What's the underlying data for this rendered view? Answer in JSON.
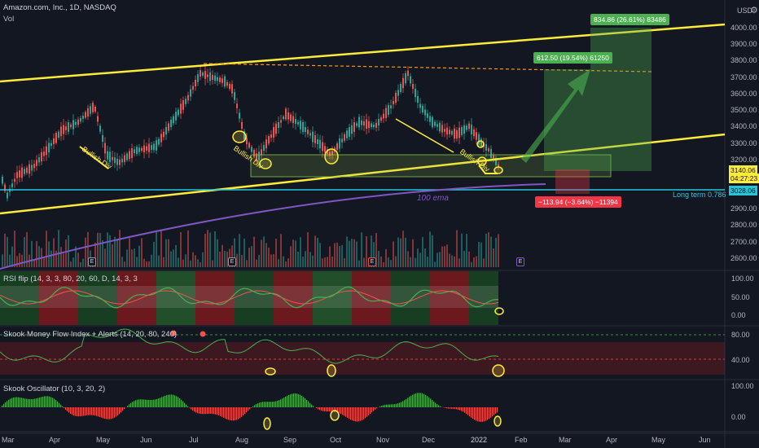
{
  "header": {
    "symbol_line": "Amazon.com, Inc., 1D, NASDAQ",
    "volume_label": "Vol",
    "currency": "USD",
    "currency_icon": "settings-gear-icon"
  },
  "price_axis": {
    "ticks": [
      "4000.00",
      "3900.00",
      "3800.00",
      "3700.00",
      "3600.00",
      "3500.00",
      "3400.00",
      "3300.00",
      "3200.00",
      "2900.00",
      "2800.00",
      "2700.00",
      "2600.00"
    ],
    "current_price": "3140.06",
    "countdown": "04:27:23",
    "level_price": "3028.06"
  },
  "time_axis": {
    "labels": [
      "Mar",
      "Apr",
      "May",
      "Jun",
      "Jul",
      "Aug",
      "Sep",
      "Oct",
      "Nov",
      "Dec",
      "2022",
      "Feb",
      "Mar",
      "Apr",
      "May",
      "Jun"
    ]
  },
  "annotations": {
    "measure_up_large": "834.86 (26.61%) 83486",
    "measure_up_small": "612.50 (19.54%) 61250",
    "measure_down": "−113.94 (−3.64%) −11394",
    "long_term": "Long term 0.786",
    "ema": "100 ema",
    "bullish_div": "Bullish Div",
    "earnings_marker": "E"
  },
  "indicators": {
    "rsi_flip": {
      "label": "RSI flip (14, 3, 3, 80, 20, 60, D, 14, 3, 3",
      "ticks": [
        "100.00",
        "50.00",
        "0.00"
      ]
    },
    "money_flow": {
      "label": "Skook Money Flow Index + Alerts (14, 20, 80, 240)",
      "ticks": [
        "80.00",
        "40.00"
      ]
    },
    "oscillator": {
      "label": "Skook Oscillator (10, 3, 20, 2)",
      "ticks": [
        "100.00",
        "0.00"
      ]
    }
  },
  "colors": {
    "background": "#131722",
    "up_candle": "#26a69a",
    "down_candle": "#ef5350",
    "trendline": "#ffeb3b",
    "ema": "#7e57c2",
    "long_term_line": "#26c6da",
    "measure_up": "#4caf50",
    "measure_down": "#f23645"
  }
}
